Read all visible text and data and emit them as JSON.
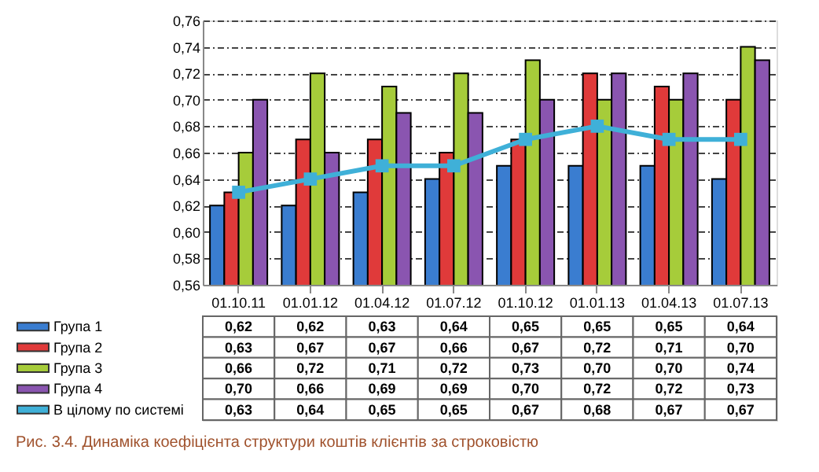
{
  "chart_data": {
    "type": "bar",
    "categories": [
      "01.10.11",
      "01.01.12",
      "01.04.12",
      "01.07.12",
      "01.10.12",
      "01.01.13",
      "01.04.13",
      "01.07.13"
    ],
    "series": [
      {
        "name": "Група 1",
        "color": "#3a7dd0",
        "values": [
          0.62,
          0.62,
          0.63,
          0.64,
          0.65,
          0.65,
          0.65,
          0.64
        ],
        "value_labels": [
          "0,62",
          "0,62",
          "0,63",
          "0,64",
          "0,65",
          "0,65",
          "0,65",
          "0,64"
        ]
      },
      {
        "name": "Група 2",
        "color": "#e03a3a",
        "values": [
          0.63,
          0.67,
          0.67,
          0.66,
          0.67,
          0.72,
          0.71,
          0.7
        ],
        "value_labels": [
          "0,63",
          "0,67",
          "0,67",
          "0,66",
          "0,67",
          "0,72",
          "0,71",
          "0,70"
        ]
      },
      {
        "name": "Група 3",
        "color": "#a6cc3a",
        "values": [
          0.66,
          0.72,
          0.71,
          0.72,
          0.73,
          0.7,
          0.7,
          0.74
        ],
        "value_labels": [
          "0,66",
          "0,72",
          "0,71",
          "0,72",
          "0,73",
          "0,70",
          "0,70",
          "0,74"
        ]
      },
      {
        "name": "Група 4",
        "color": "#8a55b0",
        "values": [
          0.7,
          0.66,
          0.69,
          0.69,
          0.7,
          0.72,
          0.72,
          0.73
        ],
        "value_labels": [
          "0,70",
          "0,66",
          "0,69",
          "0,69",
          "0,70",
          "0,72",
          "0,72",
          "0,73"
        ]
      },
      {
        "name": "В цілому по системі",
        "type": "line",
        "color": "#3fb0d8",
        "values": [
          0.63,
          0.64,
          0.65,
          0.65,
          0.67,
          0.68,
          0.67,
          0.67
        ],
        "value_labels": [
          "0,63",
          "0,64",
          "0,65",
          "0,65",
          "0,67",
          "0,68",
          "0,67",
          "0,67"
        ]
      }
    ],
    "ylim": [
      0.56,
      0.76
    ],
    "yticks": [
      {
        "value": 0.56,
        "label": "0,56"
      },
      {
        "value": 0.58,
        "label": "0,58"
      },
      {
        "value": 0.6,
        "label": "0,60"
      },
      {
        "value": 0.62,
        "label": "0,62"
      },
      {
        "value": 0.64,
        "label": "0,64"
      },
      {
        "value": 0.66,
        "label": "0,66"
      },
      {
        "value": 0.68,
        "label": "0,68"
      },
      {
        "value": 0.7,
        "label": "0,70"
      },
      {
        "value": 0.72,
        "label": "0,72"
      },
      {
        "value": 0.74,
        "label": "0,74"
      },
      {
        "value": 0.76,
        "label": "0,76"
      }
    ],
    "grid": "y",
    "legend": "bottom",
    "marker": "square",
    "line_style": "solid",
    "annotations": [
      "Рис. 3.4. Динаміка коефіцієнта структури коштів клієнтів за строковістю"
    ]
  }
}
